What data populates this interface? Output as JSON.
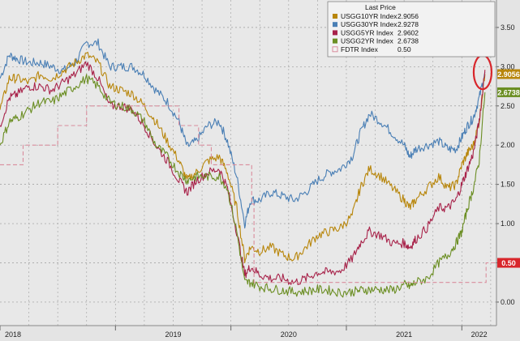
{
  "chart_data": {
    "type": "line",
    "title": "",
    "xlabel": "",
    "ylabel": "",
    "ylim": [
      -0.3,
      3.85
    ],
    "xlim": [
      2018.0,
      2022.3
    ],
    "y_ticks": [
      "0.00",
      "0.50",
      "1.00",
      "1.50",
      "2.00",
      "2.50",
      "3.00",
      "3.50"
    ],
    "x_tick_labels": [
      {
        "label": "2018",
        "x": 2018.0
      },
      {
        "label": "2019",
        "x": 2019.0
      },
      {
        "label": "2020",
        "x": 2020.0
      },
      {
        "label": "2021",
        "x": 2021.0
      },
      {
        "label": "2022",
        "x": 2022.0
      }
    ],
    "grid": true,
    "legend": {
      "placement": "top-right",
      "header": "Last Price",
      "entries": [
        {
          "name": "USGG10YR Index",
          "value": "2.9056",
          "color": "#b8860b"
        },
        {
          "name": "USGG30YR Index",
          "value": "2.9278",
          "color": "#4a7fb5"
        },
        {
          "name": "USGG5YR Index",
          "value": "2.9602",
          "color": "#a8234a"
        },
        {
          "name": "USGG2YR Index",
          "value": "2.6738",
          "color": "#6b8e23"
        },
        {
          "name": "FDTR Index",
          "value": "0.50",
          "color": "#d98c9c"
        }
      ]
    },
    "last_value_tags": [
      {
        "text": "2.9056",
        "value": 2.9056,
        "bg": "#b8860b",
        "fg": "#ffffff"
      },
      {
        "text": "2.6738",
        "value": 2.6738,
        "bg": "#6b8e23",
        "fg": "#ffffff"
      },
      {
        "text": "0.50",
        "value": 0.5,
        "bg": "#d8262b",
        "fg": "#ffffff"
      }
    ],
    "highlight": {
      "x": 2022.18,
      "y": 2.93,
      "color": "#d8262b"
    },
    "series": [
      {
        "name": "USGG30YR Index",
        "color": "#4a7fb5",
        "style": "line",
        "points": [
          [
            2018.0,
            2.85
          ],
          [
            2018.08,
            3.15
          ],
          [
            2018.15,
            3.1
          ],
          [
            2018.25,
            3.05
          ],
          [
            2018.35,
            3.05
          ],
          [
            2018.45,
            3.0
          ],
          [
            2018.55,
            2.95
          ],
          [
            2018.65,
            3.05
          ],
          [
            2018.75,
            3.3
          ],
          [
            2018.85,
            3.3
          ],
          [
            2018.95,
            3.0
          ],
          [
            2019.05,
            3.0
          ],
          [
            2019.15,
            3.0
          ],
          [
            2019.25,
            2.9
          ],
          [
            2019.35,
            2.7
          ],
          [
            2019.45,
            2.55
          ],
          [
            2019.55,
            2.3
          ],
          [
            2019.62,
            1.98
          ],
          [
            2019.7,
            2.05
          ],
          [
            2019.8,
            2.25
          ],
          [
            2019.9,
            2.3
          ],
          [
            2019.97,
            2.05
          ],
          [
            2020.05,
            1.6
          ],
          [
            2020.12,
            1.0
          ],
          [
            2020.17,
            1.3
          ],
          [
            2020.25,
            1.3
          ],
          [
            2020.35,
            1.4
          ],
          [
            2020.45,
            1.35
          ],
          [
            2020.55,
            1.3
          ],
          [
            2020.65,
            1.4
          ],
          [
            2020.75,
            1.55
          ],
          [
            2020.85,
            1.65
          ],
          [
            2020.95,
            1.7
          ],
          [
            2021.05,
            1.85
          ],
          [
            2021.12,
            2.15
          ],
          [
            2021.2,
            2.4
          ],
          [
            2021.3,
            2.3
          ],
          [
            2021.4,
            2.15
          ],
          [
            2021.5,
            2.0
          ],
          [
            2021.55,
            1.85
          ],
          [
            2021.6,
            1.95
          ],
          [
            2021.7,
            2.0
          ],
          [
            2021.8,
            2.05
          ],
          [
            2021.88,
            1.95
          ],
          [
            2021.95,
            1.95
          ],
          [
            2022.0,
            2.1
          ],
          [
            2022.05,
            2.25
          ],
          [
            2022.1,
            2.35
          ],
          [
            2022.15,
            2.6
          ],
          [
            2022.2,
            2.93
          ]
        ]
      },
      {
        "name": "USGG10YR Index",
        "color": "#b8860b",
        "style": "line",
        "points": [
          [
            2018.0,
            2.45
          ],
          [
            2018.08,
            2.85
          ],
          [
            2018.15,
            2.85
          ],
          [
            2018.25,
            2.8
          ],
          [
            2018.35,
            2.9
          ],
          [
            2018.45,
            2.85
          ],
          [
            2018.55,
            2.95
          ],
          [
            2018.65,
            3.05
          ],
          [
            2018.75,
            3.15
          ],
          [
            2018.85,
            3.05
          ],
          [
            2018.95,
            2.75
          ],
          [
            2019.05,
            2.7
          ],
          [
            2019.15,
            2.65
          ],
          [
            2019.25,
            2.5
          ],
          [
            2019.35,
            2.3
          ],
          [
            2019.45,
            2.05
          ],
          [
            2019.55,
            1.8
          ],
          [
            2019.62,
            1.55
          ],
          [
            2019.7,
            1.65
          ],
          [
            2019.8,
            1.8
          ],
          [
            2019.9,
            1.85
          ],
          [
            2019.97,
            1.65
          ],
          [
            2020.05,
            1.2
          ],
          [
            2020.12,
            0.55
          ],
          [
            2020.17,
            0.7
          ],
          [
            2020.25,
            0.65
          ],
          [
            2020.35,
            0.7
          ],
          [
            2020.45,
            0.6
          ],
          [
            2020.55,
            0.55
          ],
          [
            2020.65,
            0.7
          ],
          [
            2020.75,
            0.85
          ],
          [
            2020.85,
            0.9
          ],
          [
            2020.95,
            0.95
          ],
          [
            2021.05,
            1.1
          ],
          [
            2021.12,
            1.45
          ],
          [
            2021.2,
            1.7
          ],
          [
            2021.3,
            1.6
          ],
          [
            2021.4,
            1.45
          ],
          [
            2021.5,
            1.3
          ],
          [
            2021.55,
            1.2
          ],
          [
            2021.6,
            1.3
          ],
          [
            2021.7,
            1.45
          ],
          [
            2021.8,
            1.6
          ],
          [
            2021.88,
            1.45
          ],
          [
            2021.95,
            1.5
          ],
          [
            2022.0,
            1.75
          ],
          [
            2022.05,
            1.9
          ],
          [
            2022.1,
            2.0
          ],
          [
            2022.15,
            2.3
          ],
          [
            2022.2,
            2.9056
          ]
        ]
      },
      {
        "name": "USGG5YR Index",
        "color": "#a8234a",
        "style": "line",
        "points": [
          [
            2018.0,
            2.25
          ],
          [
            2018.08,
            2.6
          ],
          [
            2018.15,
            2.65
          ],
          [
            2018.25,
            2.75
          ],
          [
            2018.35,
            2.75
          ],
          [
            2018.45,
            2.7
          ],
          [
            2018.55,
            2.8
          ],
          [
            2018.65,
            2.9
          ],
          [
            2018.75,
            3.05
          ],
          [
            2018.85,
            2.85
          ],
          [
            2018.95,
            2.5
          ],
          [
            2019.05,
            2.5
          ],
          [
            2019.15,
            2.45
          ],
          [
            2019.25,
            2.25
          ],
          [
            2019.35,
            2.0
          ],
          [
            2019.45,
            1.8
          ],
          [
            2019.55,
            1.55
          ],
          [
            2019.62,
            1.4
          ],
          [
            2019.7,
            1.55
          ],
          [
            2019.8,
            1.65
          ],
          [
            2019.9,
            1.7
          ],
          [
            2019.97,
            1.45
          ],
          [
            2020.05,
            0.9
          ],
          [
            2020.12,
            0.35
          ],
          [
            2020.17,
            0.45
          ],
          [
            2020.25,
            0.35
          ],
          [
            2020.35,
            0.3
          ],
          [
            2020.45,
            0.3
          ],
          [
            2020.55,
            0.25
          ],
          [
            2020.65,
            0.3
          ],
          [
            2020.75,
            0.38
          ],
          [
            2020.85,
            0.38
          ],
          [
            2020.95,
            0.4
          ],
          [
            2021.05,
            0.55
          ],
          [
            2021.12,
            0.75
          ],
          [
            2021.2,
            0.9
          ],
          [
            2021.3,
            0.85
          ],
          [
            2021.4,
            0.75
          ],
          [
            2021.5,
            0.75
          ],
          [
            2021.55,
            0.7
          ],
          [
            2021.6,
            0.8
          ],
          [
            2021.7,
            0.95
          ],
          [
            2021.8,
            1.2
          ],
          [
            2021.88,
            1.2
          ],
          [
            2021.95,
            1.3
          ],
          [
            2022.0,
            1.5
          ],
          [
            2022.05,
            1.7
          ],
          [
            2022.1,
            1.9
          ],
          [
            2022.15,
            2.3
          ],
          [
            2022.2,
            2.9602
          ]
        ]
      },
      {
        "name": "USGG2YR Index",
        "color": "#6b8e23",
        "style": "line",
        "points": [
          [
            2018.0,
            2.0
          ],
          [
            2018.08,
            2.3
          ],
          [
            2018.15,
            2.35
          ],
          [
            2018.25,
            2.45
          ],
          [
            2018.35,
            2.55
          ],
          [
            2018.45,
            2.55
          ],
          [
            2018.55,
            2.65
          ],
          [
            2018.65,
            2.75
          ],
          [
            2018.75,
            2.85
          ],
          [
            2018.85,
            2.75
          ],
          [
            2018.95,
            2.55
          ],
          [
            2019.05,
            2.5
          ],
          [
            2019.15,
            2.45
          ],
          [
            2019.25,
            2.3
          ],
          [
            2019.35,
            2.0
          ],
          [
            2019.45,
            1.85
          ],
          [
            2019.55,
            1.65
          ],
          [
            2019.62,
            1.55
          ],
          [
            2019.7,
            1.6
          ],
          [
            2019.8,
            1.6
          ],
          [
            2019.9,
            1.6
          ],
          [
            2019.97,
            1.45
          ],
          [
            2020.05,
            0.9
          ],
          [
            2020.12,
            0.25
          ],
          [
            2020.17,
            0.25
          ],
          [
            2020.25,
            0.2
          ],
          [
            2020.35,
            0.17
          ],
          [
            2020.45,
            0.15
          ],
          [
            2020.55,
            0.13
          ],
          [
            2020.65,
            0.14
          ],
          [
            2020.75,
            0.16
          ],
          [
            2020.85,
            0.15
          ],
          [
            2020.95,
            0.12
          ],
          [
            2021.05,
            0.13
          ],
          [
            2021.12,
            0.15
          ],
          [
            2021.2,
            0.16
          ],
          [
            2021.3,
            0.16
          ],
          [
            2021.4,
            0.15
          ],
          [
            2021.5,
            0.22
          ],
          [
            2021.55,
            0.2
          ],
          [
            2021.6,
            0.25
          ],
          [
            2021.7,
            0.3
          ],
          [
            2021.8,
            0.5
          ],
          [
            2021.88,
            0.6
          ],
          [
            2021.95,
            0.75
          ],
          [
            2022.0,
            0.9
          ],
          [
            2022.05,
            1.2
          ],
          [
            2022.1,
            1.45
          ],
          [
            2022.15,
            1.8
          ],
          [
            2022.2,
            2.6738
          ]
        ]
      },
      {
        "name": "FDTR Index",
        "color": "#d98c9c",
        "style": "step-dashed",
        "points": [
          [
            2018.0,
            1.75
          ],
          [
            2018.2,
            2.0
          ],
          [
            2018.45,
            2.0
          ],
          [
            2018.5,
            2.25
          ],
          [
            2018.72,
            2.25
          ],
          [
            2018.75,
            2.5
          ],
          [
            2019.48,
            2.5
          ],
          [
            2019.55,
            2.25
          ],
          [
            2019.7,
            2.25
          ],
          [
            2019.72,
            2.0
          ],
          [
            2019.8,
            2.0
          ],
          [
            2019.83,
            1.75
          ],
          [
            2020.17,
            1.75
          ],
          [
            2020.18,
            1.25
          ],
          [
            2020.2,
            0.25
          ],
          [
            2022.2,
            0.25
          ],
          [
            2022.21,
            0.5
          ],
          [
            2022.3,
            0.5
          ]
        ]
      }
    ]
  }
}
